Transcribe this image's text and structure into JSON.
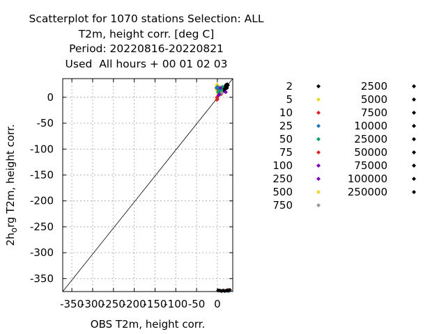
{
  "title_lines": [
    "Scatterplot for 1070 stations Selection: ALL",
    "T2m, height corr. [deg C]",
    "Period: 20220816-20220821",
    "Used  All hours + 00 01 02 03"
  ],
  "chart_data": {
    "type": "scatter",
    "xlabel": "OBS T2m, height corr.",
    "ylabel": "2h_org T2m, height corr.",
    "ylabel_parts": [
      "2h",
      "o",
      "rg T2m, height corr."
    ],
    "xlim": [
      -372,
      37
    ],
    "ylim": [
      -375,
      36
    ],
    "x_ticks": [
      -350,
      -300,
      -250,
      -200,
      -150,
      -100,
      -50,
      0
    ],
    "x_tick_labels": [
      "-350",
      "-300",
      "-250",
      "-200",
      "-150",
      "-100",
      "-50",
      "0"
    ],
    "y_ticks": [
      0,
      -50,
      -100,
      -150,
      -200,
      -250,
      -300,
      -350
    ],
    "y_tick_labels": [
      "0",
      "-50",
      "-100",
      "-150",
      "-200",
      "-250",
      "-300",
      "-350"
    ],
    "grid": true,
    "reference_line": {
      "x": [
        -375,
        37
      ],
      "y": [
        -375,
        37
      ]
    },
    "legend_placement": "right",
    "legend": [
      {
        "label": "2",
        "color": "#000000"
      },
      {
        "label": "5",
        "color": "#e6d82a"
      },
      {
        "label": "10",
        "color": "#d62728"
      },
      {
        "label": "25",
        "color": "#1f77b4"
      },
      {
        "label": "50",
        "color": "#009e73"
      },
      {
        "label": "75",
        "color": "#d62728"
      },
      {
        "label": "100",
        "color": "#7b00b4"
      },
      {
        "label": "250",
        "color": "#7b00b4"
      },
      {
        "label": "500",
        "color": "#e6d82a"
      },
      {
        "label": "750",
        "color": "#999999"
      },
      {
        "label": "2500",
        "color": "#000000"
      },
      {
        "label": "5000",
        "color": "#000000"
      },
      {
        "label": "7500",
        "color": "#000000"
      },
      {
        "label": "10000",
        "color": "#000000"
      },
      {
        "label": "25000",
        "color": "#000000"
      },
      {
        "label": "50000",
        "color": "#000000"
      },
      {
        "label": "75000",
        "color": "#000000"
      },
      {
        "label": "100000",
        "color": "#000000"
      },
      {
        "label": "250000",
        "color": "#000000"
      }
    ],
    "series": [
      {
        "color": "#000000",
        "points": [
          [
            5,
            8
          ],
          [
            8,
            12
          ],
          [
            10,
            10
          ],
          [
            12,
            15
          ],
          [
            15,
            14
          ],
          [
            18,
            18
          ],
          [
            20,
            22
          ],
          [
            22,
            20
          ],
          [
            24,
            25
          ],
          [
            25,
            23
          ],
          [
            14,
            11
          ],
          [
            16,
            19
          ],
          [
            19,
            16
          ],
          [
            21,
            24
          ],
          [
            23,
            18
          ]
        ]
      },
      {
        "color": "#e6d82a",
        "points": [
          [
            -2,
            20
          ],
          [
            -1,
            24
          ],
          [
            -2,
            16
          ],
          [
            0,
            12
          ],
          [
            1,
            8
          ],
          [
            2,
            22
          ]
        ]
      },
      {
        "color": "#d62728",
        "points": [
          [
            -1,
            -5
          ],
          [
            0,
            -3
          ],
          [
            3,
            14
          ],
          [
            9,
            6
          ],
          [
            26,
            -372
          ],
          [
            -1,
            0
          ]
        ]
      },
      {
        "color": "#1f77b4",
        "points": [
          [
            -2,
            18
          ],
          [
            0,
            20
          ],
          [
            4,
            16
          ],
          [
            6,
            10
          ],
          [
            8,
            14
          ],
          [
            27,
            -374
          ]
        ]
      },
      {
        "color": "#009e73",
        "points": [
          [
            2,
            10
          ],
          [
            4,
            12
          ],
          [
            6,
            16
          ],
          [
            8,
            8
          ],
          [
            10,
            14
          ],
          [
            12,
            20
          ]
        ]
      },
      {
        "color": "#7b00b4",
        "points": [
          [
            3,
            4
          ],
          [
            5,
            6
          ],
          [
            7,
            18
          ],
          [
            20,
            10
          ],
          [
            28,
            -373
          ]
        ]
      },
      {
        "color": "#999999",
        "points": [
          [
            11,
            9
          ]
        ]
      },
      {
        "color": "#000000",
        "points": [
          [
            2,
            -373
          ],
          [
            6,
            -373
          ],
          [
            10,
            -374
          ],
          [
            14,
            -373
          ],
          [
            18,
            -374
          ],
          [
            22,
            -373
          ],
          [
            30,
            -372
          ],
          [
            24,
            -373
          ]
        ]
      }
    ]
  }
}
